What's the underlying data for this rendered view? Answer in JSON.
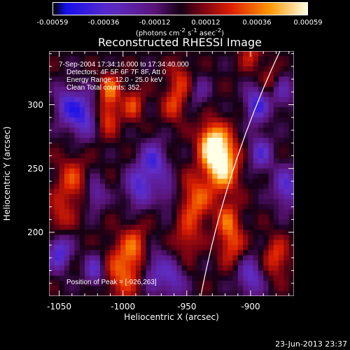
{
  "colorbar": {
    "ticks": [
      "-0.00059",
      "-0.00036",
      "-0.00012",
      "0.00012",
      "0.00036",
      "0.00059"
    ],
    "units_prefix": "(photons cm",
    "units_sup1": "-2",
    "units_mid1": " s",
    "units_sup2": "-1",
    "units_mid2": " asec",
    "units_sup3": "-2",
    "units_suffix": ")"
  },
  "chart_data": {
    "type": "heatmap",
    "title": "Reconstructed RHESSI Image",
    "xlabel": "Heliocentric X (arcsec)",
    "ylabel": "Heliocentric Y (arcsec)",
    "xlim": [
      -1058,
      -866
    ],
    "ylim": [
      150,
      342
    ],
    "xticks": [
      -1050,
      -1000,
      -950,
      -900
    ],
    "yticks": [
      200,
      250,
      300
    ],
    "annotations": [
      "7-Sep-2004 17:34:16.000 to 17:34:40.000",
      "Detectors: 4F 5F 6F 7F 8F, Att 0",
      "Energy Range: 12.0 - 25.0 keV",
      "Clean     Total counts: 352."
    ],
    "peak_text": "Position of Peak = [-926,263]",
    "peak": [
      -926,
      263
    ],
    "color_range": [
      -0.00059,
      0.00059
    ]
  },
  "colors": {
    "background": "#000000",
    "foreground": "#ffffff"
  },
  "footer": "23-Jun-2013 23:37"
}
